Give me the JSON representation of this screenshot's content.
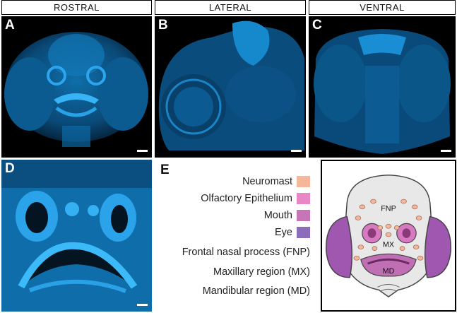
{
  "headers": {
    "rostral": "ROSTRAL",
    "lateral": "LATERAL",
    "ventral": "VENTRAL"
  },
  "panels": {
    "a": "A",
    "b": "B",
    "c": "C",
    "d": "D",
    "e": "E"
  },
  "legend": [
    {
      "label": "Neuromast",
      "color": "#f4b79b"
    },
    {
      "label": "Olfactory Epithelium",
      "color": "#e887c4"
    },
    {
      "label": "Mouth",
      "color": "#c675b6"
    },
    {
      "label": "Eye",
      "color": "#8b6dbb"
    },
    {
      "label": "Frontal nasal process (FNP)"
    },
    {
      "label": "Maxillary region (MX)"
    },
    {
      "label": "Mandibular region (MD)"
    }
  ],
  "diagram": {
    "fnp": "FNP",
    "mx": "MX",
    "md": "MD"
  },
  "colors": {
    "fluorescence": "#1aa7ff",
    "background": "#000000"
  }
}
